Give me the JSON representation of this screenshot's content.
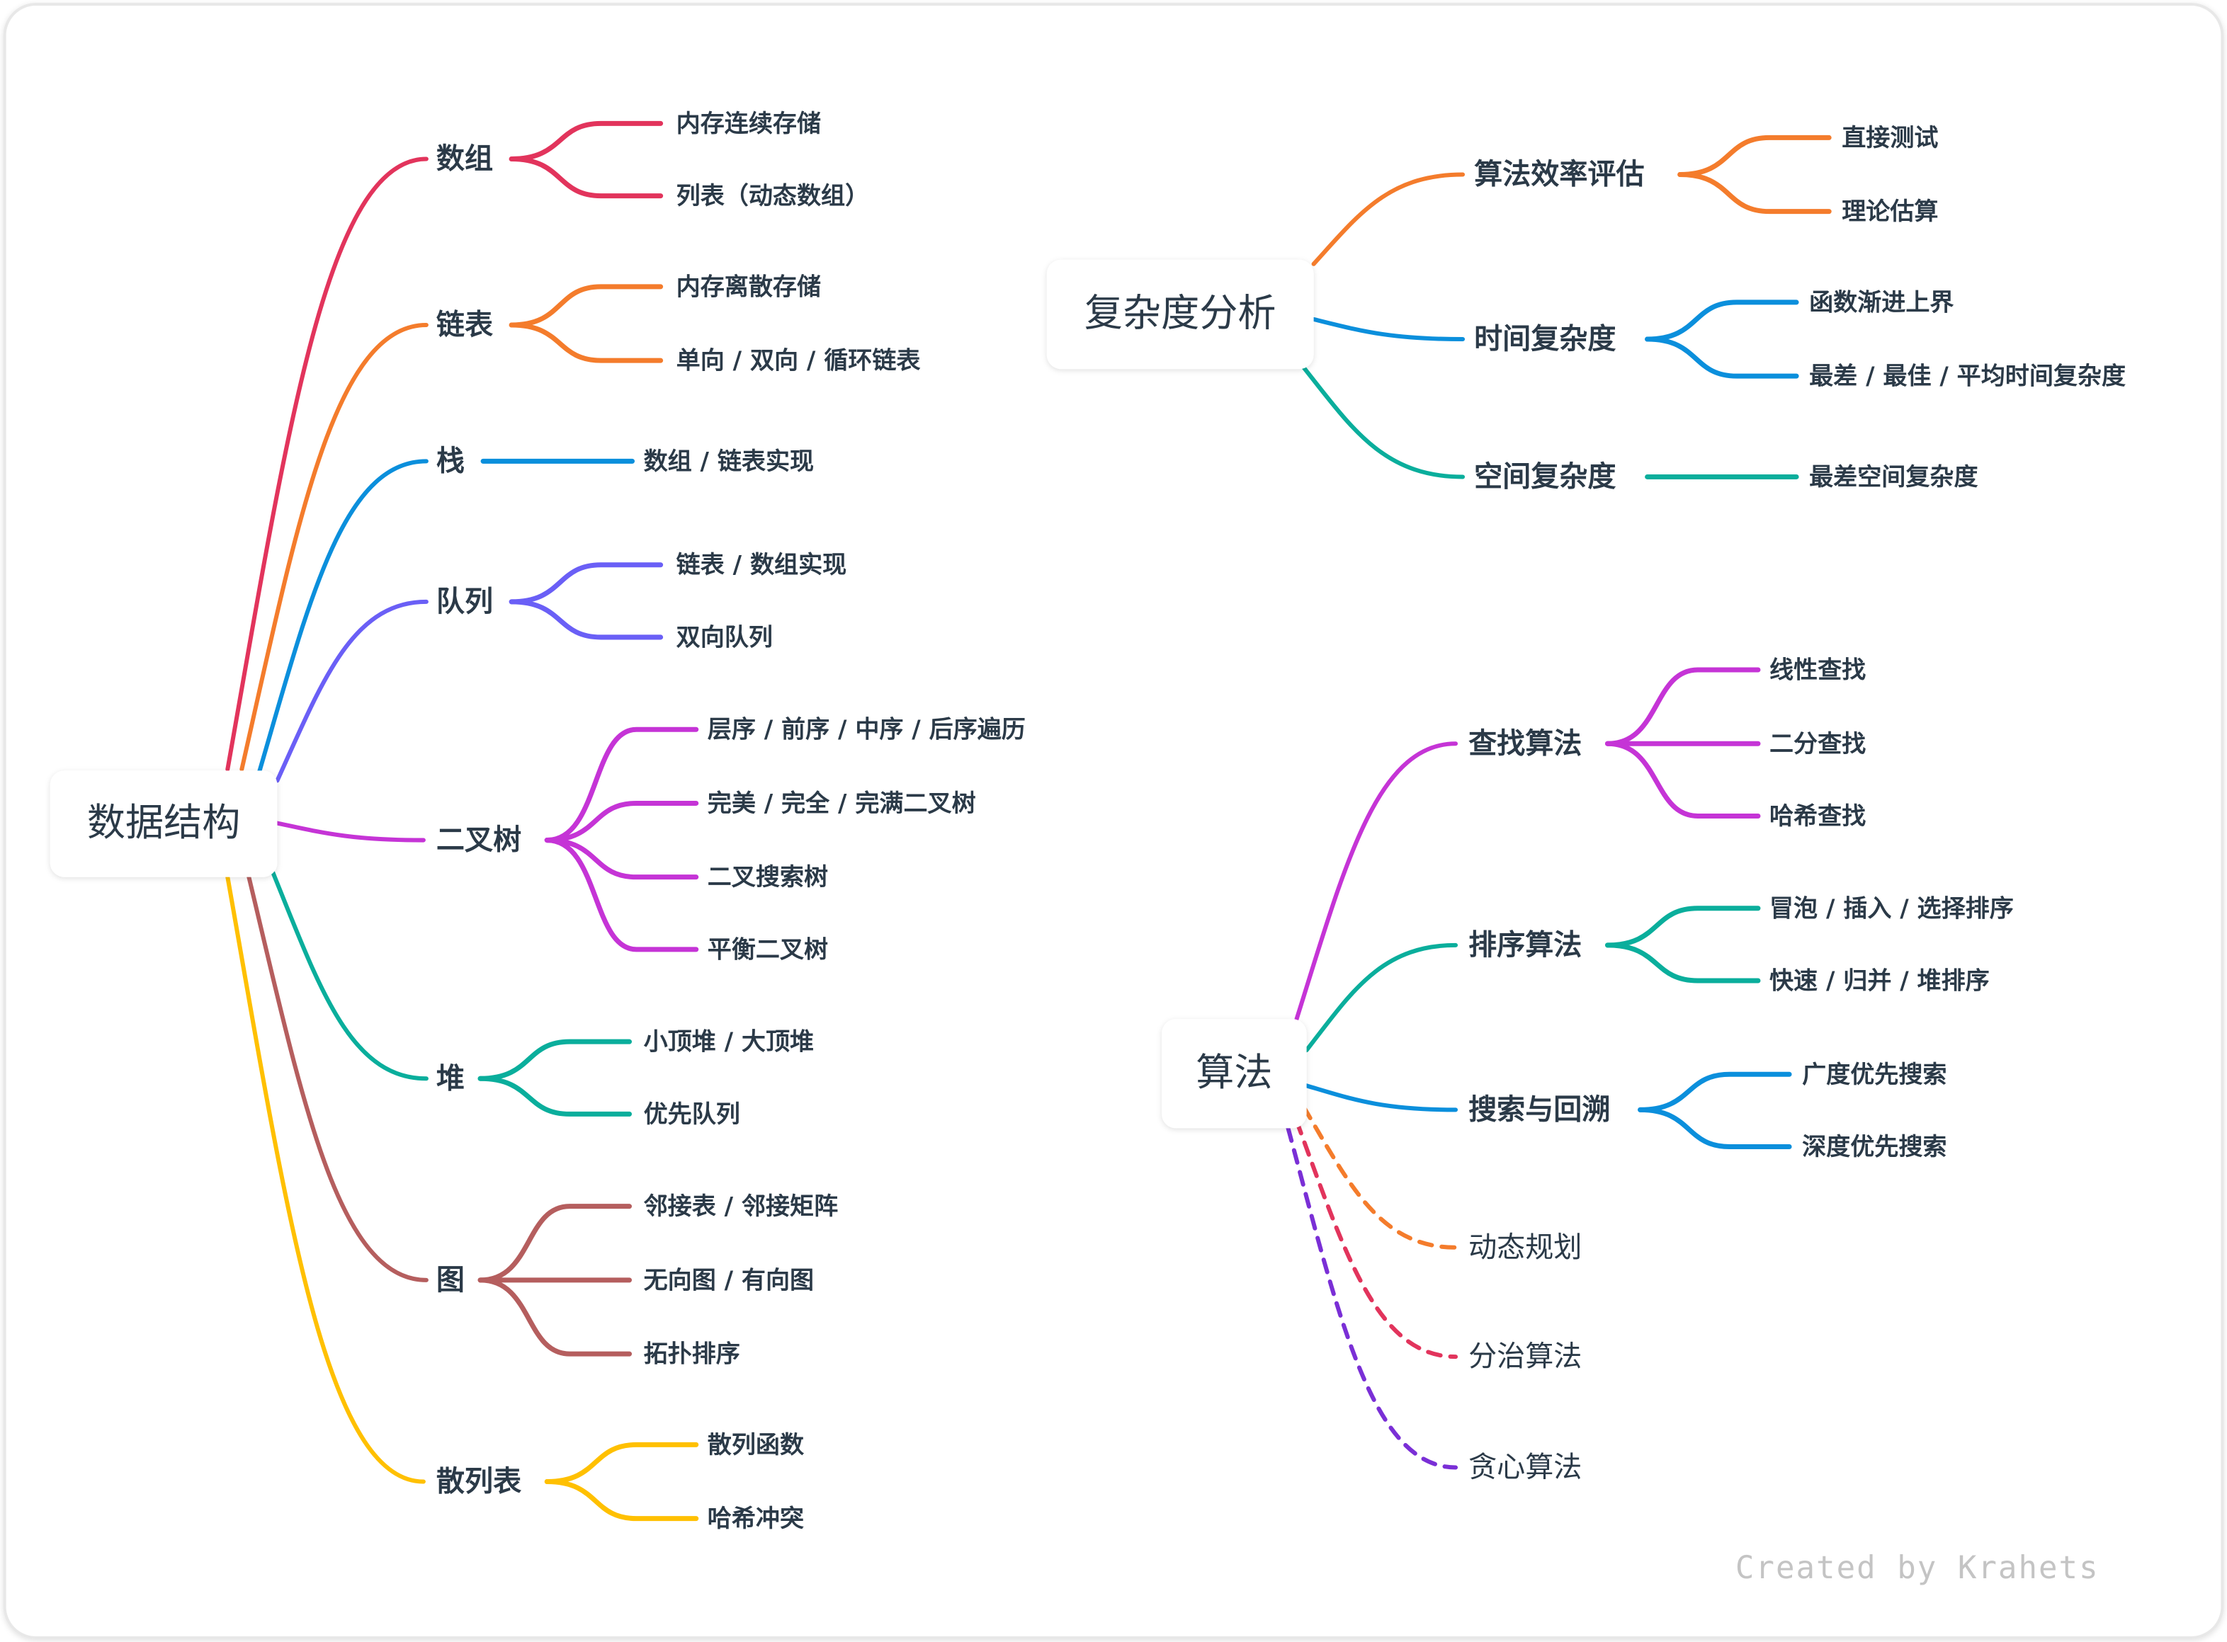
{
  "mindmaps": [
    {
      "root": "数据结构",
      "children": [
        {
          "label": "数组",
          "color": "#e2345c",
          "children": [
            "内存连续存储",
            "列表（动态数组）"
          ]
        },
        {
          "label": "链表",
          "color": "#f47c2c",
          "children": [
            "内存离散存储",
            "单向 / 双向 / 循环链表"
          ]
        },
        {
          "label": "栈",
          "color": "#0b8fdc",
          "children": [
            "数组 / 链表实现"
          ]
        },
        {
          "label": "队列",
          "color": "#6a5ff6",
          "children": [
            "链表 / 数组实现",
            "双向队列"
          ]
        },
        {
          "label": "二叉树",
          "color": "#c534d6",
          "children": [
            "层序 / 前序 / 中序 / 后序遍历",
            "完美 / 完全 / 完满二叉树",
            "二叉搜索树",
            "平衡二叉树"
          ]
        },
        {
          "label": "堆",
          "color": "#0aae9c",
          "children": [
            "小顶堆 / 大顶堆",
            "优先队列"
          ]
        },
        {
          "label": "图",
          "color": "#b55e5e",
          "children": [
            "邻接表 / 邻接矩阵",
            "无向图 / 有向图",
            "拓扑排序"
          ]
        },
        {
          "label": "散列表",
          "color": "#ffc000",
          "children": [
            "散列函数",
            "哈希冲突"
          ]
        }
      ]
    },
    {
      "root": "复杂度分析",
      "children": [
        {
          "label": "算法效率评估",
          "color": "#f47c2c",
          "children": [
            "直接测试",
            "理论估算"
          ]
        },
        {
          "label": "时间复杂度",
          "color": "#0b8fdc",
          "children": [
            "函数渐进上界",
            "最差 / 最佳 / 平均时间复杂度"
          ]
        },
        {
          "label": "空间复杂度",
          "color": "#0aae9c",
          "children": [
            "最差空间复杂度"
          ]
        }
      ]
    },
    {
      "root": "算法",
      "children": [
        {
          "label": "查找算法",
          "color": "#c534d6",
          "children": [
            "线性查找",
            "二分查找",
            "哈希查找"
          ]
        },
        {
          "label": "排序算法",
          "color": "#0aae9c",
          "children": [
            "冒泡 / 插入 / 选择排序",
            "快速 / 归并 / 堆排序"
          ]
        },
        {
          "label": "搜索与回溯",
          "color": "#0b8fdc",
          "children": [
            "广度优先搜索",
            "深度优先搜索"
          ]
        },
        {
          "label": "动态规划",
          "color": "#f47c2c",
          "style": "dashed",
          "children": []
        },
        {
          "label": "分治算法",
          "color": "#e2345c",
          "style": "dashed",
          "children": []
        },
        {
          "label": "贪心算法",
          "color": "#7a2fd6",
          "style": "dashed",
          "children": []
        }
      ]
    }
  ],
  "footer": "Created by Krahets"
}
